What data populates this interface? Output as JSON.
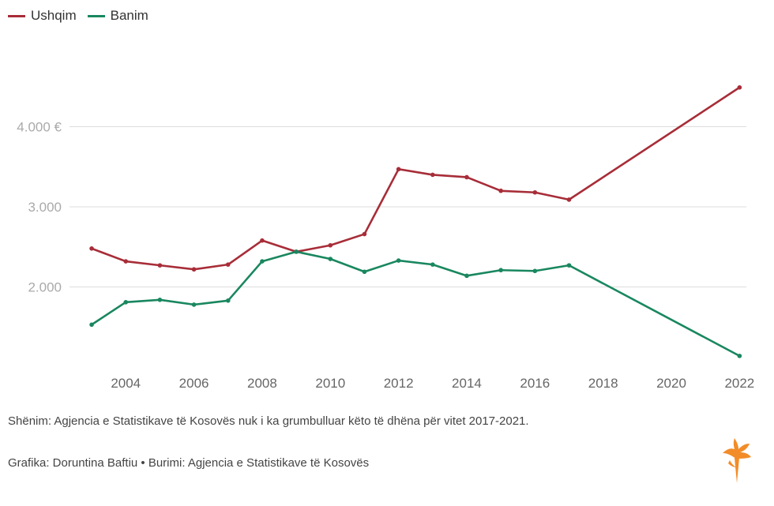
{
  "legend": {
    "items": [
      {
        "label": "Ushqim",
        "color": "#a72d38"
      },
      {
        "label": "Banim",
        "color": "#19875f"
      }
    ]
  },
  "notes": {
    "note": "Shënim: Agjencia e Statistikave të Kosovës nuk i ka grumbulluar këto të dhëna për vitet 2017-2021.",
    "credits": "Grafika: Doruntina Baftiu • Burimi: Agjencia e Statistikave të Kosovës"
  },
  "chart_data": {
    "type": "line",
    "title": "",
    "xlabel": "",
    "ylabel": "",
    "x_ticks": [
      "2004",
      "2006",
      "2008",
      "2010",
      "2012",
      "2014",
      "2016",
      "2018",
      "2020",
      "2022"
    ],
    "y_ticks": [
      {
        "value": 2000,
        "label": "2.000"
      },
      {
        "value": 3000,
        "label": "3.000"
      },
      {
        "value": 4000,
        "label": "4.000 €"
      }
    ],
    "xlim": [
      2002.35,
      2022.2
    ],
    "ylim": [
      1050,
      4990
    ],
    "grid": true,
    "legend_position": "top-left",
    "series": [
      {
        "name": "Ushqim",
        "color": "#a72d38",
        "points": [
          {
            "x": 2003,
            "y": 2480
          },
          {
            "x": 2004,
            "y": 2320
          },
          {
            "x": 2005,
            "y": 2270
          },
          {
            "x": 2006,
            "y": 2220
          },
          {
            "x": 2007,
            "y": 2280
          },
          {
            "x": 2008,
            "y": 2580
          },
          {
            "x": 2009,
            "y": 2440
          },
          {
            "x": 2010,
            "y": 2520
          },
          {
            "x": 2011,
            "y": 2660
          },
          {
            "x": 2012,
            "y": 3470
          },
          {
            "x": 2013,
            "y": 3400
          },
          {
            "x": 2014,
            "y": 3370
          },
          {
            "x": 2015,
            "y": 3200
          },
          {
            "x": 2016,
            "y": 3180
          },
          {
            "x": 2017,
            "y": 3090
          },
          {
            "x": 2022,
            "y": 4490
          }
        ]
      },
      {
        "name": "Banim",
        "color": "#19875f",
        "points": [
          {
            "x": 2003,
            "y": 1530
          },
          {
            "x": 2004,
            "y": 1810
          },
          {
            "x": 2005,
            "y": 1840
          },
          {
            "x": 2006,
            "y": 1780
          },
          {
            "x": 2007,
            "y": 1830
          },
          {
            "x": 2008,
            "y": 2320
          },
          {
            "x": 2009,
            "y": 2440
          },
          {
            "x": 2010,
            "y": 2350
          },
          {
            "x": 2011,
            "y": 2190
          },
          {
            "x": 2012,
            "y": 2330
          },
          {
            "x": 2013,
            "y": 2280
          },
          {
            "x": 2014,
            "y": 2140
          },
          {
            "x": 2015,
            "y": 2210
          },
          {
            "x": 2016,
            "y": 2200
          },
          {
            "x": 2017,
            "y": 2270
          },
          {
            "x": 2022,
            "y": 1140
          }
        ]
      }
    ]
  },
  "logo": {
    "name": "RFE/RL torch logo",
    "color": "#f28c28"
  }
}
